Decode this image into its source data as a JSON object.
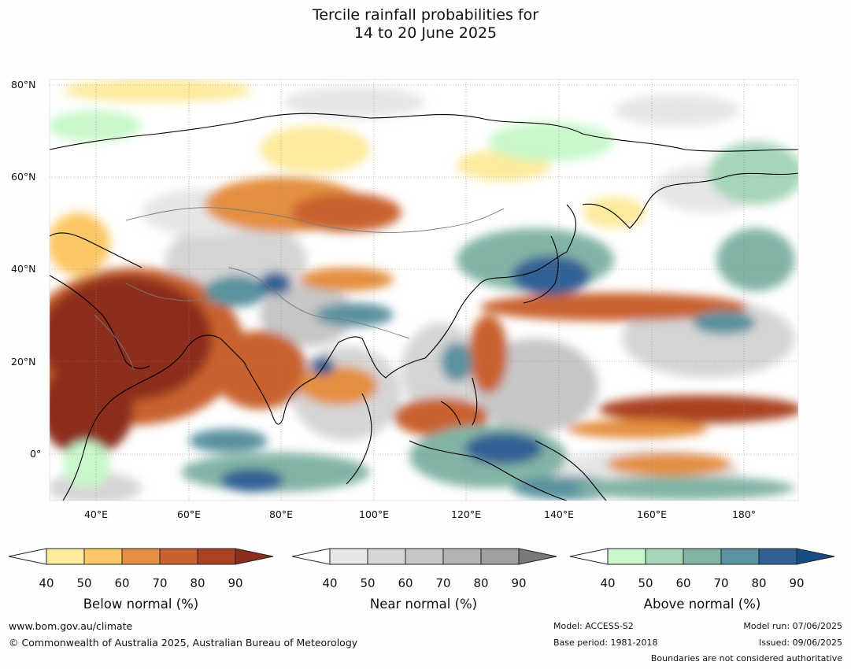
{
  "title": {
    "line1": "Tercile rainfall probabilities for",
    "line2": "14 to 20 June 2025"
  },
  "map": {
    "lat_labels": [
      "80°N",
      "60°N",
      "40°N",
      "20°N",
      "0°"
    ],
    "lon_labels": [
      "40°E",
      "60°E",
      "80°E",
      "100°E",
      "120°E",
      "140°E",
      "160°E",
      "180°"
    ],
    "lat_values": [
      80,
      60,
      40,
      20,
      0
    ],
    "lon_values": [
      40,
      60,
      80,
      100,
      120,
      140,
      160,
      180
    ],
    "lon_range": [
      30,
      191
    ],
    "lat_range": [
      -10,
      81
    ]
  },
  "colorbars": [
    {
      "title": "Below normal (%)",
      "ticks": [
        "40",
        "50",
        "60",
        "70",
        "80",
        "90"
      ],
      "colors": [
        "#fdea9c",
        "#fcc765",
        "#e48f41",
        "#c9622e",
        "#ab4224",
        "#8d2e1c"
      ]
    },
    {
      "title": "Near normal (%)",
      "ticks": [
        "40",
        "50",
        "60",
        "70",
        "80",
        "90"
      ],
      "colors": [
        "#e6e6e6",
        "#d5d5d5",
        "#c6c6c6",
        "#b3b3b3",
        "#9f9f9f",
        "#7a7a7a"
      ]
    },
    {
      "title": "Above normal (%)",
      "ticks": [
        "40",
        "50",
        "60",
        "70",
        "80",
        "90"
      ],
      "colors": [
        "#c8f8cb",
        "#a5d6b7",
        "#82b4a6",
        "#5a929f",
        "#316194",
        "#164d86"
      ]
    }
  ],
  "footer": {
    "website": "www.bom.gov.au/climate",
    "copyright": "© Commonwealth of Australia 2025, Australian Bureau of Meteorology",
    "model": "Model: ACCESS-S2",
    "base_period": "Base period: 1981-2018",
    "model_run": "Model run: 07/06/2025",
    "issued": "Issued: 09/06/2025",
    "disclaimer": "Boundaries are not considered authoritative"
  }
}
